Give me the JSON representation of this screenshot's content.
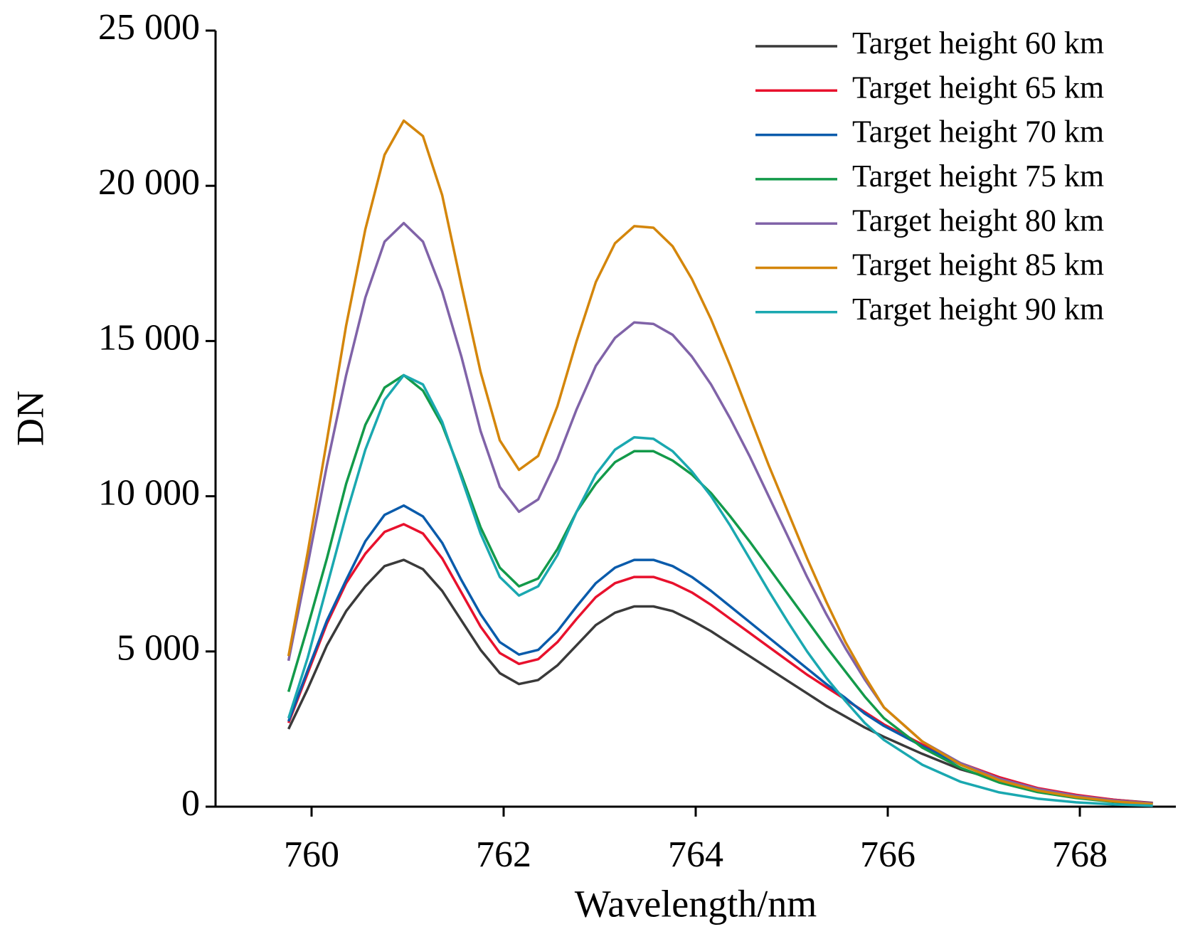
{
  "chart_data": {
    "type": "line",
    "xlabel": "Wavelength/nm",
    "ylabel": "DN",
    "xlim": [
      759,
      769
    ],
    "xticks": [
      760,
      762,
      764,
      766,
      768
    ],
    "ylim": [
      0,
      25000
    ],
    "yticks": [
      0,
      {
        "value": 5000,
        "label": "5 000"
      },
      {
        "value": 10000,
        "label": "10 000"
      },
      {
        "value": 15000,
        "label": "15 000"
      },
      {
        "value": 20000,
        "label": "20 000"
      },
      {
        "value": 25000,
        "label": "25 000"
      }
    ],
    "legend": "upper right",
    "x": [
      759.76,
      759.96,
      760.16,
      760.36,
      760.56,
      760.76,
      760.96,
      761.16,
      761.36,
      761.56,
      761.76,
      761.96,
      762.16,
      762.36,
      762.56,
      762.76,
      762.96,
      763.16,
      763.36,
      763.56,
      763.76,
      763.96,
      764.16,
      764.36,
      764.56,
      764.76,
      764.96,
      765.16,
      765.36,
      765.56,
      765.76,
      765.96,
      766.36,
      766.76,
      767.16,
      767.56,
      767.96,
      768.36,
      768.76
    ],
    "series": [
      {
        "name": "Target height 60 km",
        "color": "#3a3a3a",
        "values": [
          2500,
          3800,
          5200,
          6300,
          7100,
          7750,
          7950,
          7650,
          6950,
          6000,
          5050,
          4300,
          3950,
          4080,
          4550,
          5200,
          5850,
          6250,
          6450,
          6450,
          6300,
          6000,
          5650,
          5250,
          4850,
          4450,
          4050,
          3650,
          3250,
          2900,
          2550,
          2250,
          1700,
          1200,
          850,
          550,
          350,
          220,
          120
        ]
      },
      {
        "name": "Target height 65 km",
        "color": "#e8112d",
        "values": [
          2700,
          4300,
          5900,
          7200,
          8150,
          8850,
          9100,
          8800,
          8000,
          6900,
          5800,
          4950,
          4600,
          4750,
          5300,
          6050,
          6750,
          7200,
          7400,
          7400,
          7200,
          6900,
          6500,
          6050,
          5600,
          5150,
          4700,
          4250,
          3850,
          3450,
          3050,
          2650,
          2000,
          1400,
          950,
          600,
          380,
          220,
          110
        ]
      },
      {
        "name": "Target height 70 km",
        "color": "#0a5bab",
        "values": [
          2750,
          4400,
          6000,
          7300,
          8550,
          9400,
          9700,
          9350,
          8500,
          7300,
          6200,
          5300,
          4900,
          5050,
          5650,
          6450,
          7200,
          7700,
          7950,
          7950,
          7750,
          7400,
          6950,
          6450,
          5950,
          5450,
          4950,
          4450,
          3950,
          3500,
          3000,
          2600,
          1950,
          1350,
          900,
          560,
          340,
          190,
          80
        ]
      },
      {
        "name": "Target height 75 km",
        "color": "#139a4a",
        "values": [
          3700,
          5800,
          8000,
          10400,
          12300,
          13500,
          13900,
          13400,
          12300,
          10700,
          9000,
          7700,
          7100,
          7350,
          8300,
          9500,
          10400,
          11100,
          11450,
          11450,
          11150,
          10700,
          10100,
          9350,
          8550,
          7700,
          6850,
          6000,
          5150,
          4350,
          3550,
          2850,
          1900,
          1250,
          780,
          470,
          280,
          150,
          70
        ]
      },
      {
        "name": "Target height 80 km",
        "color": "#8063a8",
        "values": [
          4700,
          7800,
          11000,
          13900,
          16400,
          18200,
          18800,
          18200,
          16600,
          14500,
          12100,
          10300,
          9500,
          9900,
          11200,
          12800,
          14200,
          15100,
          15600,
          15550,
          15200,
          14500,
          13600,
          12500,
          11300,
          10000,
          8700,
          7400,
          6200,
          5100,
          4100,
          3200,
          2100,
          1400,
          900,
          570,
          350,
          200,
          100
        ]
      },
      {
        "name": "Target height 85 km",
        "color": "#d4860b",
        "values": [
          4850,
          8200,
          11800,
          15500,
          18600,
          21000,
          22100,
          21600,
          19700,
          16800,
          14000,
          11800,
          10850,
          11300,
          12900,
          15000,
          16900,
          18150,
          18700,
          18650,
          18050,
          17000,
          15700,
          14200,
          12600,
          11000,
          9500,
          8000,
          6600,
          5300,
          4200,
          3200,
          2100,
          1350,
          850,
          520,
          310,
          170,
          80
        ]
      },
      {
        "name": "Target height 90 km",
        "color": "#1aa8b0",
        "values": [
          2850,
          4800,
          7100,
          9400,
          11500,
          13100,
          13900,
          13600,
          12400,
          10600,
          8800,
          7400,
          6800,
          7100,
          8100,
          9500,
          10700,
          11500,
          11900,
          11850,
          11450,
          10800,
          10000,
          9050,
          8000,
          6950,
          5950,
          5000,
          4150,
          3400,
          2700,
          2150,
          1350,
          800,
          460,
          260,
          140,
          70,
          30
        ]
      }
    ]
  }
}
